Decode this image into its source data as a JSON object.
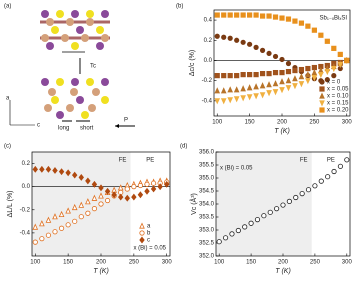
{
  "diagram": {
    "panel": "(a)",
    "tc": "Tc",
    "long": "long",
    "short": "short",
    "p": "P",
    "axis_a": "a",
    "axis_c": "c"
  },
  "chart_data": [
    {
      "type": "scatter",
      "panel": "(b)",
      "title": "Sb₁₋ₓBiₓSI",
      "xlabel": "T (K)",
      "ylabel": "Δc/c (%)",
      "xlim": [
        95,
        305
      ],
      "xticks": [
        100,
        150,
        200,
        250,
        300
      ],
      "ylim": [
        -0.55,
        0.5
      ],
      "yticks": [
        -0.4,
        -0.2,
        {
          "value": 0,
          "label": "0.0"
        },
        0.2,
        0.4
      ],
      "zero_line": true,
      "legend": "lower right",
      "x": [
        100,
        110,
        120,
        130,
        140,
        150,
        160,
        170,
        180,
        190,
        200,
        210,
        220,
        230,
        240,
        250,
        260,
        270,
        280,
        290,
        300
      ],
      "series": [
        {
          "name": "x = 0",
          "color": "#7a3a12",
          "marker": "circle",
          "filled": true,
          "values": [
            0.24,
            0.23,
            0.22,
            0.2,
            0.18,
            0.16,
            0.13,
            0.1,
            0.07,
            0.04,
            0.01,
            -0.03,
            -0.07,
            -0.11,
            -0.15,
            -0.18,
            -0.2,
            -0.19,
            -0.15,
            -0.08,
            0.0
          ]
        },
        {
          "name": "x = 0.05",
          "color": "#a0521c",
          "marker": "square",
          "filled": true,
          "values": [
            -0.15,
            -0.15,
            -0.15,
            -0.15,
            -0.14,
            -0.14,
            -0.14,
            -0.13,
            -0.13,
            -0.12,
            -0.12,
            -0.11,
            -0.1,
            -0.09,
            -0.08,
            -0.07,
            -0.06,
            -0.05,
            -0.03,
            -0.02,
            0.0
          ]
        },
        {
          "name": "x = 0.10",
          "color": "#b8742a",
          "marker": "triangle-up",
          "filled": true,
          "values": [
            -0.3,
            -0.3,
            -0.29,
            -0.29,
            -0.28,
            -0.27,
            -0.26,
            -0.25,
            -0.24,
            -0.23,
            -0.21,
            -0.2,
            -0.18,
            -0.16,
            -0.14,
            -0.12,
            -0.1,
            -0.08,
            -0.06,
            -0.03,
            0.0
          ]
        },
        {
          "name": "x = 0.15",
          "color": "#f0b040",
          "marker": "triangle-down",
          "filled": true,
          "values": [
            -0.4,
            -0.4,
            -0.39,
            -0.38,
            -0.37,
            -0.36,
            -0.35,
            -0.34,
            -0.32,
            -0.31,
            -0.29,
            -0.27,
            -0.25,
            -0.23,
            -0.2,
            -0.17,
            -0.14,
            -0.11,
            -0.08,
            -0.04,
            0.0
          ]
        },
        {
          "name": "x = 0.20",
          "color": "#e8901c",
          "marker": "square",
          "filled": true,
          "values": [
            0.45,
            0.45,
            0.45,
            0.45,
            0.45,
            0.45,
            0.45,
            0.44,
            0.44,
            0.43,
            0.42,
            0.41,
            0.39,
            0.37,
            0.34,
            0.3,
            0.25,
            0.19,
            0.12,
            0.06,
            0.0
          ]
        }
      ]
    },
    {
      "type": "scatter",
      "panel": "(c)",
      "xlabel": "T (K)",
      "ylabel": "ΔL/L (%)",
      "annotation": "x (Bi) = 0.05",
      "xlim": [
        95,
        305
      ],
      "xticks": [
        100,
        150,
        200,
        250,
        300
      ],
      "ylim": [
        -0.6,
        0.3
      ],
      "yticks": [
        -0.4,
        -0.2,
        {
          "value": 0,
          "label": "0.0"
        },
        0.2
      ],
      "zero_line": true,
      "legend": "lower right",
      "regions": [
        {
          "label": "FE",
          "range": [
            95,
            245
          ],
          "shaded": true
        },
        {
          "label": "PE",
          "range": [
            245,
            305
          ],
          "shaded": false
        }
      ],
      "x": [
        100,
        110,
        120,
        130,
        140,
        150,
        160,
        170,
        180,
        190,
        200,
        210,
        220,
        230,
        240,
        250,
        260,
        270,
        280,
        290,
        300
      ],
      "series": [
        {
          "name": "a",
          "color": "#e07020",
          "marker": "triangle-up",
          "filled": false,
          "values": [
            -0.35,
            -0.32,
            -0.29,
            -0.26,
            -0.24,
            -0.21,
            -0.18,
            -0.16,
            -0.13,
            -0.1,
            -0.08,
            -0.05,
            -0.03,
            -0.01,
            0.01,
            0.02,
            0.03,
            0.04,
            0.04,
            0.05,
            0.05
          ]
        },
        {
          "name": "b",
          "color": "#e07020",
          "marker": "circle",
          "filled": false,
          "values": [
            -0.48,
            -0.45,
            -0.42,
            -0.39,
            -0.36,
            -0.33,
            -0.3,
            -0.26,
            -0.23,
            -0.19,
            -0.15,
            -0.12,
            -0.08,
            -0.05,
            -0.02,
            0.0,
            0.01,
            0.02,
            0.03,
            0.03,
            0.04
          ]
        },
        {
          "name": "c",
          "color": "#b04a10",
          "marker": "diamond",
          "filled": true,
          "values": [
            0.15,
            0.15,
            0.15,
            0.14,
            0.13,
            0.12,
            0.1,
            0.08,
            0.05,
            0.02,
            -0.01,
            -0.04,
            -0.07,
            -0.09,
            -0.1,
            -0.09,
            -0.07,
            -0.04,
            -0.02,
            0.0,
            0.02
          ]
        }
      ]
    },
    {
      "type": "scatter",
      "panel": "(d)",
      "xlabel": "T (K)",
      "ylabel": "Vc (Å³)",
      "annotation": "x (Bi) = 0.05",
      "xlim": [
        95,
        305
      ],
      "xticks": [
        100,
        150,
        200,
        250,
        300
      ],
      "ylim": [
        352,
        356
      ],
      "yticks": [
        {
          "value": 352,
          "label": "352.0"
        },
        352.5,
        {
          "value": 353,
          "label": "353.0"
        },
        353.5,
        {
          "value": 354,
          "label": "354.0"
        },
        354.5,
        {
          "value": 355,
          "label": "355.0"
        },
        355.5,
        {
          "value": 356,
          "label": "356.0"
        }
      ],
      "regions": [
        {
          "label": "FE",
          "range": [
            95,
            245
          ],
          "shaded": true
        },
        {
          "label": "PE",
          "range": [
            245,
            305
          ],
          "shaded": false
        }
      ],
      "x": [
        100,
        110,
        120,
        130,
        140,
        150,
        160,
        170,
        180,
        190,
        200,
        210,
        220,
        230,
        240,
        250,
        260,
        270,
        280,
        290,
        300
      ],
      "series": [
        {
          "color": "#222",
          "marker": "circle",
          "filled": false,
          "values": [
            352.55,
            352.7,
            352.85,
            352.98,
            353.12,
            353.26,
            353.4,
            353.55,
            353.68,
            353.82,
            353.96,
            354.1,
            354.25,
            354.4,
            354.55,
            354.7,
            354.88,
            355.05,
            355.25,
            355.45,
            355.7
          ]
        }
      ]
    }
  ]
}
